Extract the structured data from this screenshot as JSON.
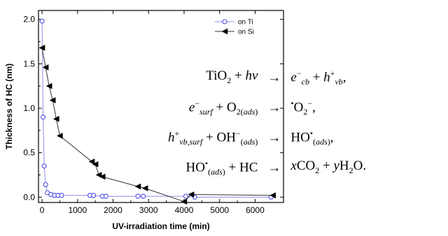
{
  "chart_data": {
    "type": "line",
    "xlabel": "UV-irradiation time (min)",
    "ylabel": "Thickness of HC (nm)",
    "xlim": [
      -100,
      6800
    ],
    "ylim": [
      -0.06,
      2.1
    ],
    "x_ticks": [
      0,
      1000,
      2000,
      3000,
      4000,
      5000,
      6000
    ],
    "y_ticks": [
      0.0,
      0.5,
      1.0,
      1.5,
      2.0
    ],
    "x_tick_labels": [
      "0",
      "1000",
      "2000",
      "3000",
      "4000",
      "5000",
      "6000"
    ],
    "y_tick_labels": [
      "0.0",
      "0.5",
      "1.0",
      "1.5",
      "2.0"
    ],
    "legend_position": "top-right",
    "grid": false,
    "series": [
      {
        "name": "on Ti",
        "color": "#4a4ae8",
        "marker": "open-circle",
        "x": [
          0,
          30,
          60,
          100,
          150,
          250,
          350,
          450,
          550,
          1350,
          1450,
          1700,
          1800,
          2700,
          2850,
          4050,
          4300,
          6450
        ],
        "y": [
          1.98,
          0.9,
          0.35,
          0.14,
          0.05,
          0.03,
          0.02,
          0.02,
          0.02,
          0.02,
          0.02,
          0.01,
          0.01,
          0.01,
          0.01,
          0.01,
          0.0,
          0.0
        ]
      },
      {
        "name": "on Si",
        "color": "#000000",
        "marker": "filled-left-triangle",
        "x": [
          0,
          100,
          200,
          300,
          400,
          500,
          1400,
          1500,
          1600,
          1700,
          2700,
          2900,
          4000,
          4200,
          6500
        ],
        "y": [
          1.68,
          1.46,
          1.25,
          1.09,
          0.88,
          0.69,
          0.4,
          0.37,
          0.25,
          0.23,
          0.12,
          0.1,
          -0.05,
          0.03,
          0.02
        ]
      }
    ]
  },
  "equations": [
    {
      "lhs": "TiO₂ + hν",
      "arrow": "→",
      "rhs": "e⁻cb + h⁺vb,"
    },
    {
      "lhs": "e⁻surf + O₂(ads)",
      "arrow": "→",
      "rhs": "•O₂⁻,"
    },
    {
      "lhs": "h⁺vb,surf + OH⁻(ads)",
      "arrow": "→",
      "rhs": "HO•(ads),"
    },
    {
      "lhs": "HO•(ads) + HC",
      "arrow": "→",
      "rhs": "xCO₂ + yH₂O."
    }
  ]
}
